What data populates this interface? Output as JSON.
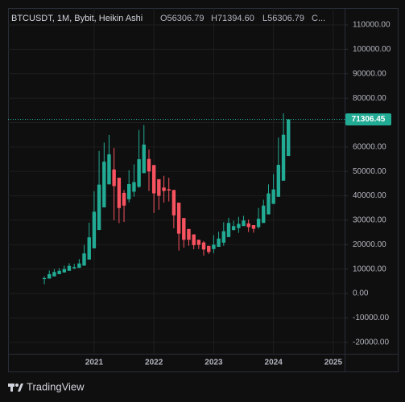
{
  "chart_data": {
    "type": "candlestick",
    "title": "BTCUSDT, 1M, Bybit, Heikin Ashi",
    "legend_values": [
      "O56306.79",
      "H71394.60",
      "L56306.79",
      "C..."
    ],
    "up_color": "#22ab94",
    "down_color": "#f7525f",
    "grid": true,
    "x": [
      2020.167,
      2020.25,
      2020.333,
      2020.417,
      2020.5,
      2020.583,
      2020.667,
      2020.75,
      2020.833,
      2020.917,
      2021,
      2021.083,
      2021.167,
      2021.25,
      2021.333,
      2021.417,
      2021.5,
      2021.583,
      2021.667,
      2021.75,
      2021.833,
      2021.917,
      2022,
      2022.083,
      2022.167,
      2022.25,
      2022.333,
      2022.417,
      2022.5,
      2022.583,
      2022.667,
      2022.75,
      2022.833,
      2022.917,
      2023,
      2023.083,
      2023.167,
      2023.25,
      2023.333,
      2023.417,
      2023.5,
      2023.583,
      2023.667,
      2023.75,
      2023.833,
      2023.917,
      2024,
      2024.083,
      2024.167,
      2024.25
    ],
    "open": [
      5900,
      6100,
      7000,
      7900,
      8600,
      9300,
      10300,
      10500,
      11400,
      13900,
      18500,
      26000,
      35300,
      44700,
      50800,
      47400,
      41200,
      38600,
      41700,
      43700,
      49300,
      55100,
      52600,
      46800,
      43400,
      42700,
      42400,
      37200,
      30900,
      26400,
      24200,
      22000,
      20900,
      19500,
      18200,
      19100,
      20800,
      23100,
      26000,
      26800,
      27600,
      28700,
      28000,
      27200,
      28900,
      32400,
      36700,
      39600,
      46200,
      56306.79
    ],
    "high": [
      7000,
      9400,
      10000,
      10400,
      11400,
      12400,
      12100,
      14100,
      19900,
      29000,
      41900,
      58400,
      61800,
      64900,
      59600,
      47400,
      42400,
      50500,
      52900,
      67000,
      69000,
      59000,
      52600,
      46800,
      48200,
      47400,
      42400,
      37200,
      30900,
      26400,
      24200,
      22000,
      21500,
      19500,
      23900,
      25300,
      29200,
      31000,
      29800,
      31400,
      31800,
      30300,
      28000,
      35000,
      38400,
      44700,
      48900,
      63900,
      73800,
      71394.6
    ],
    "low": [
      3800,
      6100,
      7000,
      7900,
      8600,
      9300,
      10000,
      10500,
      11400,
      13900,
      18500,
      26000,
      35300,
      44700,
      30000,
      28800,
      29300,
      37300,
      39600,
      43300,
      49300,
      42000,
      33000,
      34300,
      37200,
      37700,
      26700,
      17600,
      18800,
      19500,
      18100,
      18200,
      15500,
      16200,
      16500,
      19100,
      19500,
      23100,
      25800,
      24800,
      27600,
      25200,
      24900,
      26500,
      28900,
      32400,
      36700,
      39600,
      46200,
      56306.79
    ],
    "close": [
      6300,
      7900,
      8800,
      9300,
      10000,
      11300,
      10800,
      12300,
      16400,
      23000,
      33500,
      44600,
      54000,
      57000,
      44000,
      35000,
      36000,
      44800,
      45600,
      55000,
      61000,
      50000,
      41000,
      40000,
      42000,
      42200,
      32000,
      24500,
      22000,
      22000,
      19800,
      19900,
      18000,
      17000,
      20000,
      22500,
      25500,
      28900,
      27600,
      28500,
      29900,
      27200,
      26500,
      30600,
      36000,
      41000,
      42600,
      52700,
      65000,
      71306.45
    ],
    "last_price": 71306.45,
    "xlim": [
      2019.56,
      2025.19
    ],
    "xticks": [
      2021,
      2022,
      2023,
      2024,
      2025
    ],
    "ylim": [
      -24700,
      116930
    ],
    "yticks": [
      {
        "value": 110000,
        "label": "110000.00"
      },
      {
        "value": 100000,
        "label": "100000.00"
      },
      {
        "value": 90000,
        "label": "90000.00"
      },
      {
        "value": 80000,
        "label": "80000.00"
      },
      {
        "value": 70000,
        "label": "70000.00"
      },
      {
        "value": 60000,
        "label": "60000.00"
      },
      {
        "value": 50000,
        "label": "50000.00"
      },
      {
        "value": 40000,
        "label": "40000.00"
      },
      {
        "value": 30000,
        "label": "30000.00"
      },
      {
        "value": 20000,
        "label": "20000.00"
      },
      {
        "value": 10000,
        "label": "10000.00"
      },
      {
        "value": 0,
        "label": "0.00"
      },
      {
        "value": -10000,
        "label": "-10000.00"
      },
      {
        "value": -20000,
        "label": "-20000.00"
      }
    ],
    "footer": "TradingView"
  }
}
